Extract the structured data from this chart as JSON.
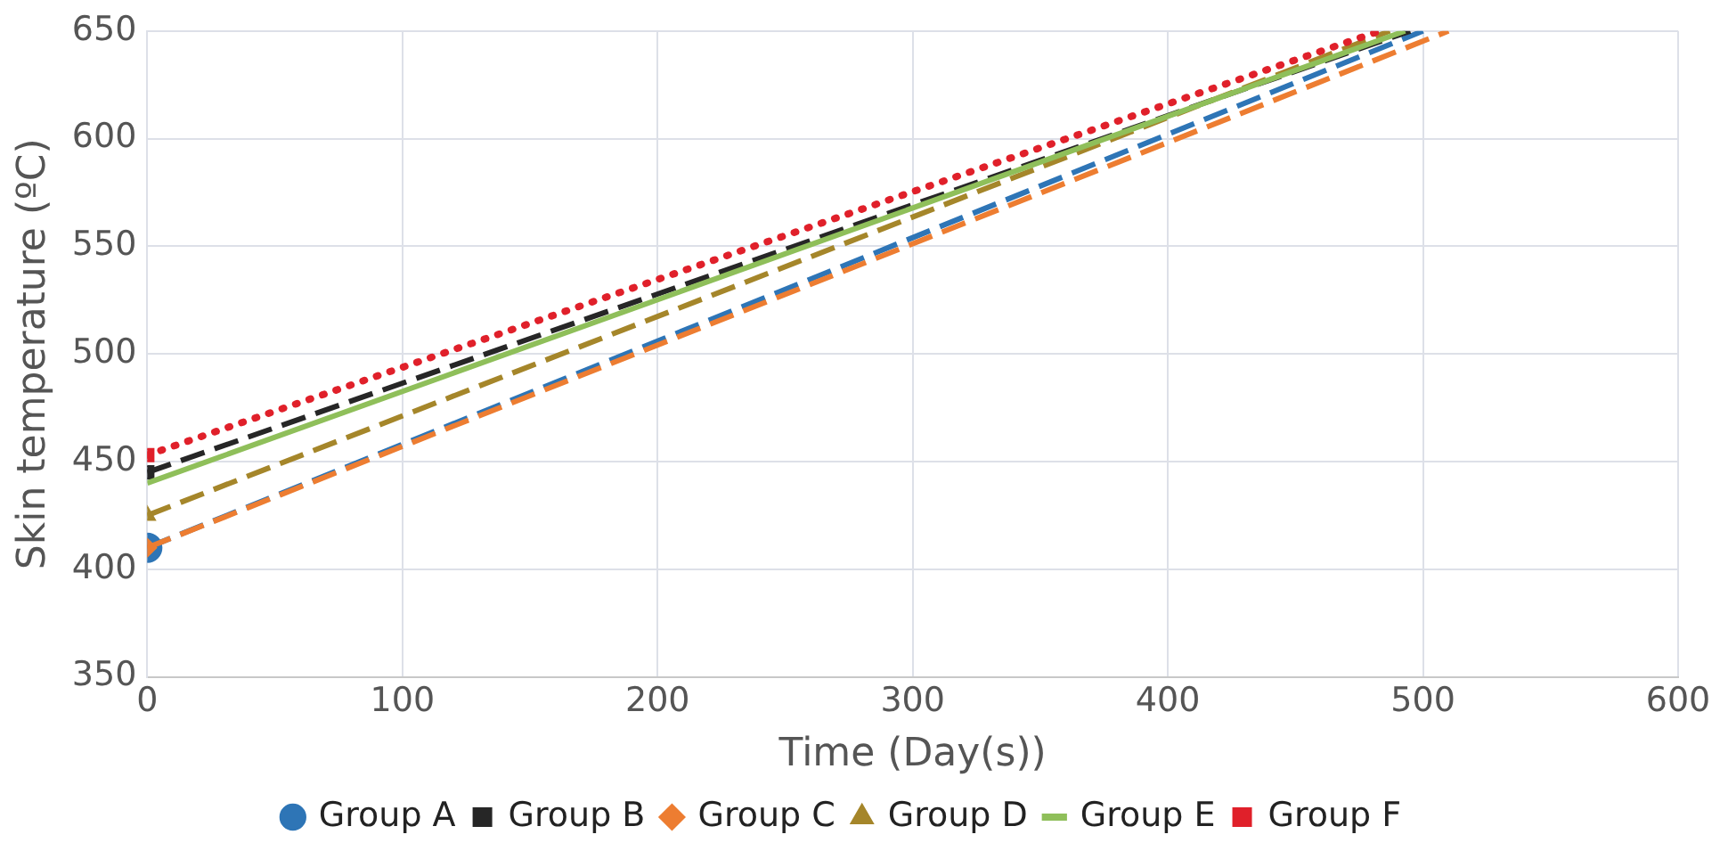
{
  "chart_data": {
    "type": "line",
    "xlabel": "Time (Day(s))",
    "ylabel": "Skin temperature (ºC)",
    "xlim": [
      0,
      600
    ],
    "xticks": [
      0,
      100,
      200,
      300,
      400,
      500,
      600
    ],
    "ylim": [
      350,
      650
    ],
    "yticks": [
      350,
      400,
      450,
      500,
      550,
      600,
      650
    ],
    "grid": true,
    "legend": "bottom",
    "series": [
      {
        "name": "Group A",
        "color": "#2e75b6",
        "x": [
          0,
          500
        ],
        "values": [
          410,
          650
        ],
        "marker": "circle",
        "line_style": "dashed"
      },
      {
        "name": "Group B",
        "color": "#262626",
        "x": [
          0,
          495
        ],
        "values": [
          445,
          650
        ],
        "marker": "square",
        "line_style": "dashed"
      },
      {
        "name": "Group C",
        "color": "#ed7d31",
        "x": [
          0,
          510
        ],
        "values": [
          410,
          650
        ],
        "marker": "diamond",
        "line_style": "dashed"
      },
      {
        "name": "Group D",
        "color": "#a5862a",
        "x": [
          0,
          487
        ],
        "values": [
          425,
          650
        ],
        "marker": "triangle",
        "line_style": "dashed"
      },
      {
        "name": "Group E",
        "color": "#8fbf5a",
        "x": [
          0,
          493
        ],
        "values": [
          440,
          650
        ],
        "marker": "none",
        "line_style": "solid"
      },
      {
        "name": "Group F",
        "color": "#e0202a",
        "x": [
          0,
          483
        ],
        "values": [
          453,
          650
        ],
        "marker": "square",
        "line_style": "dotted"
      }
    ]
  }
}
